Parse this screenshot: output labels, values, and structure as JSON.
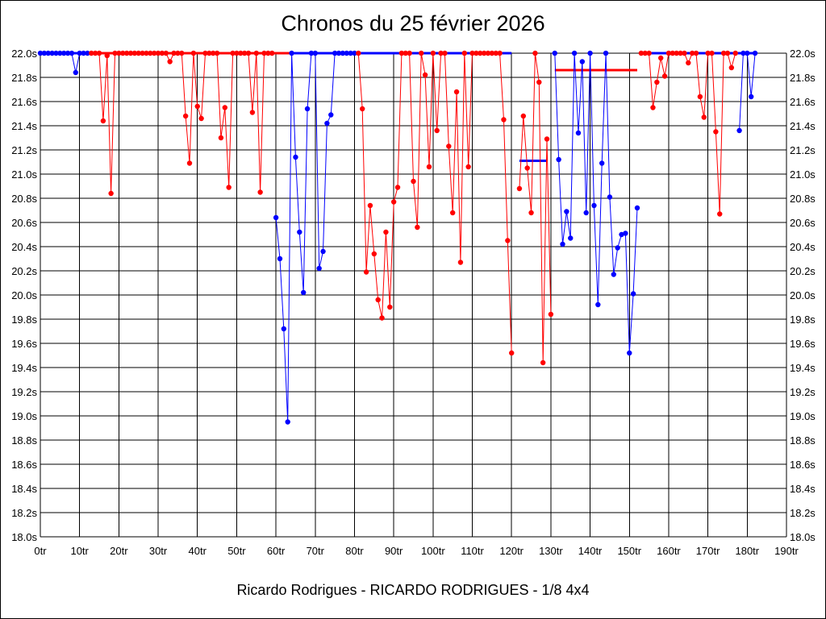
{
  "chart_data": {
    "type": "line",
    "title": "Chronos du 25 février 2026",
    "subtitle": "Ricardo Rodrigues - RICARDO RODRIGUES - 1/8 4x4",
    "xlabel": "",
    "ylabel": "",
    "xlim": [
      0,
      190
    ],
    "ylim": [
      18.0,
      22.0
    ],
    "grid": true,
    "y_ticks": [
      "22.0s",
      "21.8s",
      "21.6s",
      "21.4s",
      "21.2s",
      "21.0s",
      "20.8s",
      "20.6s",
      "20.4s",
      "20.2s",
      "20.0s",
      "19.8s",
      "19.6s",
      "19.4s",
      "19.2s",
      "19.0s",
      "18.8s",
      "18.6s",
      "18.4s",
      "18.2s",
      "18.0s"
    ],
    "x_ticks": [
      "0tr",
      "10tr",
      "20tr",
      "30tr",
      "40tr",
      "50tr",
      "60tr",
      "70tr",
      "80tr",
      "90tr",
      "100tr",
      "110tr",
      "120tr",
      "130tr",
      "140tr",
      "150tr",
      "160tr",
      "170tr",
      "180tr",
      "190tr"
    ],
    "colors": {
      "blue": "#0000ff",
      "red": "#ff0000",
      "grid": "#000000"
    },
    "series": [
      {
        "color": "blue",
        "points": [
          [
            0,
            22.0
          ],
          [
            1,
            22.0
          ],
          [
            2,
            22.0
          ],
          [
            3,
            22.0
          ],
          [
            4,
            22.0
          ],
          [
            5,
            22.0
          ],
          [
            6,
            22.0
          ],
          [
            7,
            22.0
          ],
          [
            8,
            22.0
          ],
          [
            9,
            21.84
          ],
          [
            10,
            22.0
          ],
          [
            11,
            22.0
          ],
          [
            12,
            22.0
          ]
        ]
      },
      {
        "color": "red",
        "points": [
          [
            13,
            22.0
          ],
          [
            14,
            22.0
          ],
          [
            15,
            22.0
          ],
          [
            16,
            21.44
          ],
          [
            17,
            21.98
          ],
          [
            18,
            20.84
          ],
          [
            19,
            22.0
          ],
          [
            20,
            22.0
          ],
          [
            21,
            22.0
          ],
          [
            22,
            22.0
          ],
          [
            23,
            22.0
          ],
          [
            24,
            22.0
          ],
          [
            25,
            22.0
          ],
          [
            26,
            22.0
          ],
          [
            27,
            22.0
          ],
          [
            28,
            22.0
          ],
          [
            29,
            22.0
          ],
          [
            30,
            22.0
          ],
          [
            31,
            22.0
          ],
          [
            32,
            22.0
          ],
          [
            33,
            21.93
          ],
          [
            34,
            22.0
          ],
          [
            35,
            22.0
          ],
          [
            36,
            22.0
          ],
          [
            37,
            21.48
          ],
          [
            38,
            21.09
          ],
          [
            39,
            22.0
          ],
          [
            40,
            21.56
          ],
          [
            41,
            21.46
          ],
          [
            42,
            22.0
          ],
          [
            43,
            22.0
          ],
          [
            44,
            22.0
          ],
          [
            45,
            22.0
          ],
          [
            46,
            21.3
          ],
          [
            47,
            21.55
          ],
          [
            48,
            20.89
          ],
          [
            49,
            22.0
          ],
          [
            50,
            22.0
          ],
          [
            51,
            22.0
          ],
          [
            52,
            22.0
          ],
          [
            53,
            22.0
          ],
          [
            54,
            21.51
          ],
          [
            55,
            22.0
          ],
          [
            56,
            20.85
          ],
          [
            57,
            22.0
          ],
          [
            58,
            22.0
          ],
          [
            59,
            22.0
          ]
        ]
      },
      {
        "color": "blue",
        "points": [
          [
            60,
            20.64
          ],
          [
            61,
            20.3
          ],
          [
            62,
            19.72
          ],
          [
            63,
            18.95
          ],
          [
            64,
            22.0
          ],
          [
            65,
            21.14
          ],
          [
            66,
            20.52
          ],
          [
            67,
            20.02
          ],
          [
            68,
            21.54
          ],
          [
            69,
            22.0
          ],
          [
            70,
            22.0
          ],
          [
            71,
            20.22
          ],
          [
            72,
            20.36
          ],
          [
            73,
            21.42
          ],
          [
            74,
            21.49
          ],
          [
            75,
            22.0
          ],
          [
            76,
            22.0
          ],
          [
            77,
            22.0
          ],
          [
            78,
            22.0
          ],
          [
            79,
            22.0
          ],
          [
            80,
            22.0
          ]
        ]
      },
      {
        "color": "red",
        "points": [
          [
            81,
            22.0
          ],
          [
            82,
            21.54
          ],
          [
            83,
            20.19
          ],
          [
            84,
            20.74
          ],
          [
            85,
            20.34
          ],
          [
            86,
            19.96
          ],
          [
            87,
            19.81
          ],
          [
            88,
            20.52
          ],
          [
            89,
            19.9
          ],
          [
            90,
            20.77
          ],
          [
            91,
            20.89
          ],
          [
            92,
            22.0
          ],
          [
            93,
            22.0
          ],
          [
            94,
            22.0
          ],
          [
            95,
            20.94
          ],
          [
            96,
            20.56
          ],
          [
            97,
            22.0
          ],
          [
            98,
            21.82
          ],
          [
            99,
            21.06
          ],
          [
            100,
            22.0
          ],
          [
            101,
            21.36
          ],
          [
            102,
            22.0
          ],
          [
            103,
            22.0
          ],
          [
            104,
            21.23
          ],
          [
            105,
            20.68
          ],
          [
            106,
            21.68
          ],
          [
            107,
            20.27
          ],
          [
            108,
            22.0
          ],
          [
            109,
            21.06
          ],
          [
            110,
            22.0
          ],
          [
            111,
            22.0
          ],
          [
            112,
            22.0
          ],
          [
            113,
            22.0
          ],
          [
            114,
            22.0
          ],
          [
            115,
            22.0
          ],
          [
            116,
            22.0
          ],
          [
            117,
            22.0
          ],
          [
            118,
            21.45
          ],
          [
            119,
            20.45
          ],
          [
            120,
            19.52
          ]
        ]
      },
      {
        "color": "red",
        "points": [
          [
            122,
            20.88
          ],
          [
            123,
            21.48
          ],
          [
            124,
            21.05
          ],
          [
            125,
            20.68
          ],
          [
            126,
            22.0
          ],
          [
            127,
            21.76
          ],
          [
            128,
            19.44
          ],
          [
            129,
            21.29
          ],
          [
            130,
            19.84
          ]
        ]
      },
      {
        "color": "blue",
        "points": [
          [
            131,
            22.0
          ],
          [
            132,
            21.12
          ],
          [
            133,
            20.42
          ],
          [
            134,
            20.69
          ],
          [
            135,
            20.47
          ],
          [
            136,
            22.0
          ],
          [
            137,
            21.34
          ],
          [
            138,
            21.93
          ],
          [
            139,
            20.68
          ],
          [
            140,
            22.0
          ],
          [
            141,
            20.74
          ],
          [
            142,
            19.92
          ],
          [
            143,
            21.09
          ],
          [
            144,
            22.0
          ],
          [
            145,
            20.81
          ],
          [
            146,
            20.17
          ],
          [
            147,
            20.39
          ],
          [
            148,
            20.5
          ],
          [
            149,
            20.51
          ],
          [
            150,
            19.52
          ],
          [
            151,
            20.01
          ],
          [
            152,
            20.72
          ]
        ]
      },
      {
        "color": "red",
        "points": [
          [
            153,
            22.0
          ],
          [
            154,
            22.0
          ],
          [
            155,
            22.0
          ],
          [
            156,
            21.55
          ],
          [
            157,
            21.76
          ],
          [
            158,
            21.96
          ],
          [
            159,
            21.81
          ],
          [
            160,
            22.0
          ],
          [
            161,
            22.0
          ],
          [
            162,
            22.0
          ],
          [
            163,
            22.0
          ],
          [
            164,
            22.0
          ],
          [
            165,
            21.92
          ],
          [
            166,
            22.0
          ],
          [
            167,
            22.0
          ],
          [
            168,
            21.64
          ],
          [
            169,
            21.47
          ],
          [
            170,
            22.0
          ],
          [
            171,
            22.0
          ],
          [
            172,
            21.35
          ],
          [
            173,
            20.67
          ],
          [
            174,
            22.0
          ],
          [
            175,
            22.0
          ],
          [
            176,
            21.88
          ],
          [
            177,
            22.0
          ]
        ]
      },
      {
        "color": "blue",
        "points": [
          [
            178,
            21.36
          ],
          [
            179,
            22.0
          ],
          [
            180,
            22.0
          ],
          [
            181,
            21.64
          ],
          [
            182,
            22.0
          ]
        ]
      }
    ],
    "reference_lines": [
      {
        "color": "blue",
        "x": [
          0,
          12
        ],
        "y": 22.0
      },
      {
        "color": "red",
        "x": [
          12,
          64
        ],
        "y": 22.0
      },
      {
        "color": "blue",
        "x": [
          64,
          120
        ],
        "y": 22.0
      },
      {
        "color": "blue",
        "x": [
          122,
          129
        ],
        "y": 21.11
      },
      {
        "color": "red",
        "x": [
          131,
          152
        ],
        "y": 21.86
      },
      {
        "color": "blue",
        "x": [
          153,
          182
        ],
        "y": 22.0
      }
    ]
  }
}
